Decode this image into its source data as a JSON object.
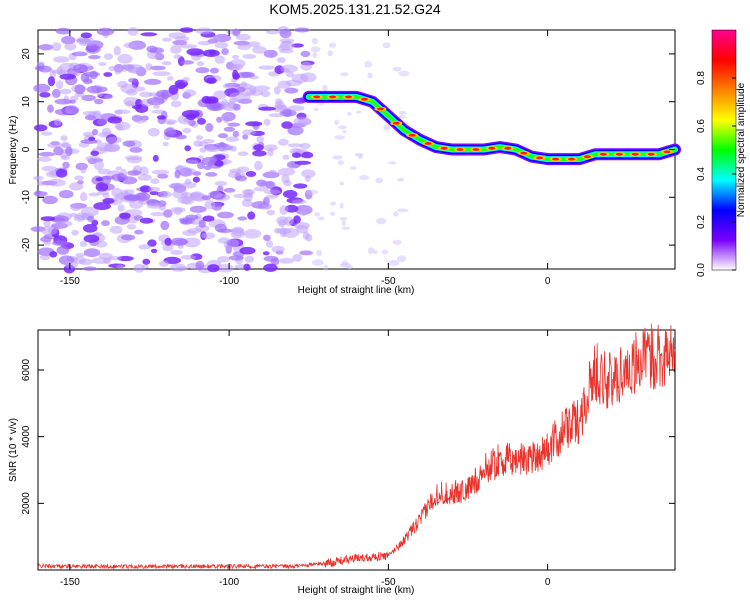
{
  "title": "KOM5.2025.131.21.52.G24",
  "colors": {
    "snr_line": "#e8322c",
    "axis": "#000000",
    "background": "#ffffff"
  },
  "chart_data": [
    {
      "type": "heatmap",
      "xlabel": "Height of straight line (km)",
      "ylabel": "Frequency (Hz)",
      "xlim": [
        -160,
        40
      ],
      "ylim": [
        -25,
        25
      ],
      "x_ticks": [
        -150,
        -100,
        -50,
        0
      ],
      "y_ticks": [
        -20,
        -10,
        0,
        10,
        20
      ],
      "colorbar": {
        "label": "Normalized spectral amplitude",
        "range": [
          0,
          1
        ],
        "ticks": [
          "0.0",
          "0.2",
          "0.4",
          "0.6",
          "0.8"
        ],
        "tick_values": [
          0,
          0.2,
          0.4,
          0.6,
          0.8
        ],
        "stops": [
          "#ffffff",
          "#7a00ff",
          "#0000ff",
          "#00ffff",
          "#00ff00",
          "#ffff00",
          "#ff8000",
          "#ff0000",
          "#ff0090"
        ]
      },
      "ridge": {
        "x": [
          -75,
          -70,
          -65,
          -60,
          -55,
          -50,
          -45,
          -40,
          -35,
          -30,
          -25,
          -20,
          -15,
          -10,
          -5,
          0,
          5,
          10,
          15,
          20,
          25,
          30,
          35,
          40
        ],
        "y": [
          11,
          11,
          11,
          11,
          10,
          7,
          4,
          2,
          0.5,
          0,
          0,
          0,
          0.5,
          0,
          -1.5,
          -2,
          -2,
          -2,
          -1,
          -1,
          -1,
          -1,
          -1,
          0
        ]
      },
      "noise_region": {
        "x_range": [
          -160,
          -75
        ],
        "y_range": [
          -25,
          25
        ],
        "amplitude": 0.15
      }
    },
    {
      "type": "line",
      "xlabel": "Height of straight line (km)",
      "ylabel": "SNR (10 * v/v)",
      "xlim": [
        -160,
        40
      ],
      "ylim": [
        0,
        7200
      ],
      "x_ticks": [
        -150,
        -100,
        -50,
        0
      ],
      "y_ticks": [
        2000,
        4000,
        6000
      ],
      "series": [
        {
          "x": [
            -160,
            -140,
            -120,
            -100,
            -80,
            -70,
            -60,
            -55,
            -50,
            -45,
            -40,
            -35,
            -30,
            -25,
            -20,
            -15,
            -10,
            -5,
            0,
            5,
            10,
            15,
            20,
            25,
            30,
            35,
            40
          ],
          "y": [
            120,
            110,
            110,
            110,
            110,
            200,
            350,
            400,
            420,
            900,
            1500,
            2300,
            2300,
            2400,
            3000,
            3300,
            3300,
            3400,
            3600,
            4200,
            4500,
            6000,
            5600,
            6100,
            6300,
            6500,
            6400
          ]
        }
      ]
    }
  ]
}
